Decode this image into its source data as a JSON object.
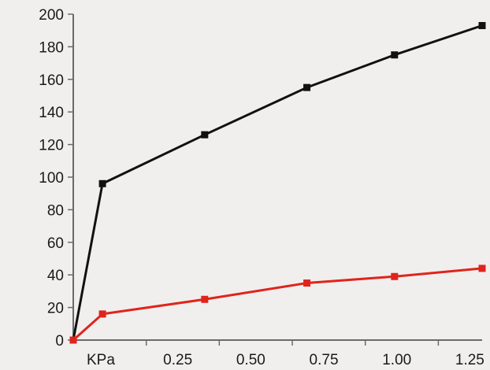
{
  "chart_data": {
    "type": "line",
    "x_unit_label": "KPa",
    "x": [
      0,
      0.1,
      0.45,
      0.8,
      1.1,
      1.4
    ],
    "x_ticks": [
      0.25,
      0.5,
      0.75,
      1.0,
      1.25
    ],
    "x_tick_labels": [
      "0.25",
      "0.50",
      "0.75",
      "1.00",
      "1.25"
    ],
    "xlim": [
      0,
      1.4
    ],
    "y_ticks": [
      0,
      20,
      40,
      60,
      80,
      100,
      120,
      140,
      160,
      180,
      200
    ],
    "y_tick_labels": [
      "0",
      "20",
      "40",
      "60",
      "80",
      "100",
      "120",
      "140",
      "160",
      "180",
      "200"
    ],
    "ylim": [
      0,
      200
    ],
    "series": [
      {
        "color": "#111111",
        "values": [
          0,
          96,
          126,
          155,
          175,
          193
        ]
      },
      {
        "color": "#e0241b",
        "values": [
          0,
          16,
          25,
          35,
          39,
          44
        ]
      }
    ],
    "grid": false,
    "legend": "none"
  }
}
